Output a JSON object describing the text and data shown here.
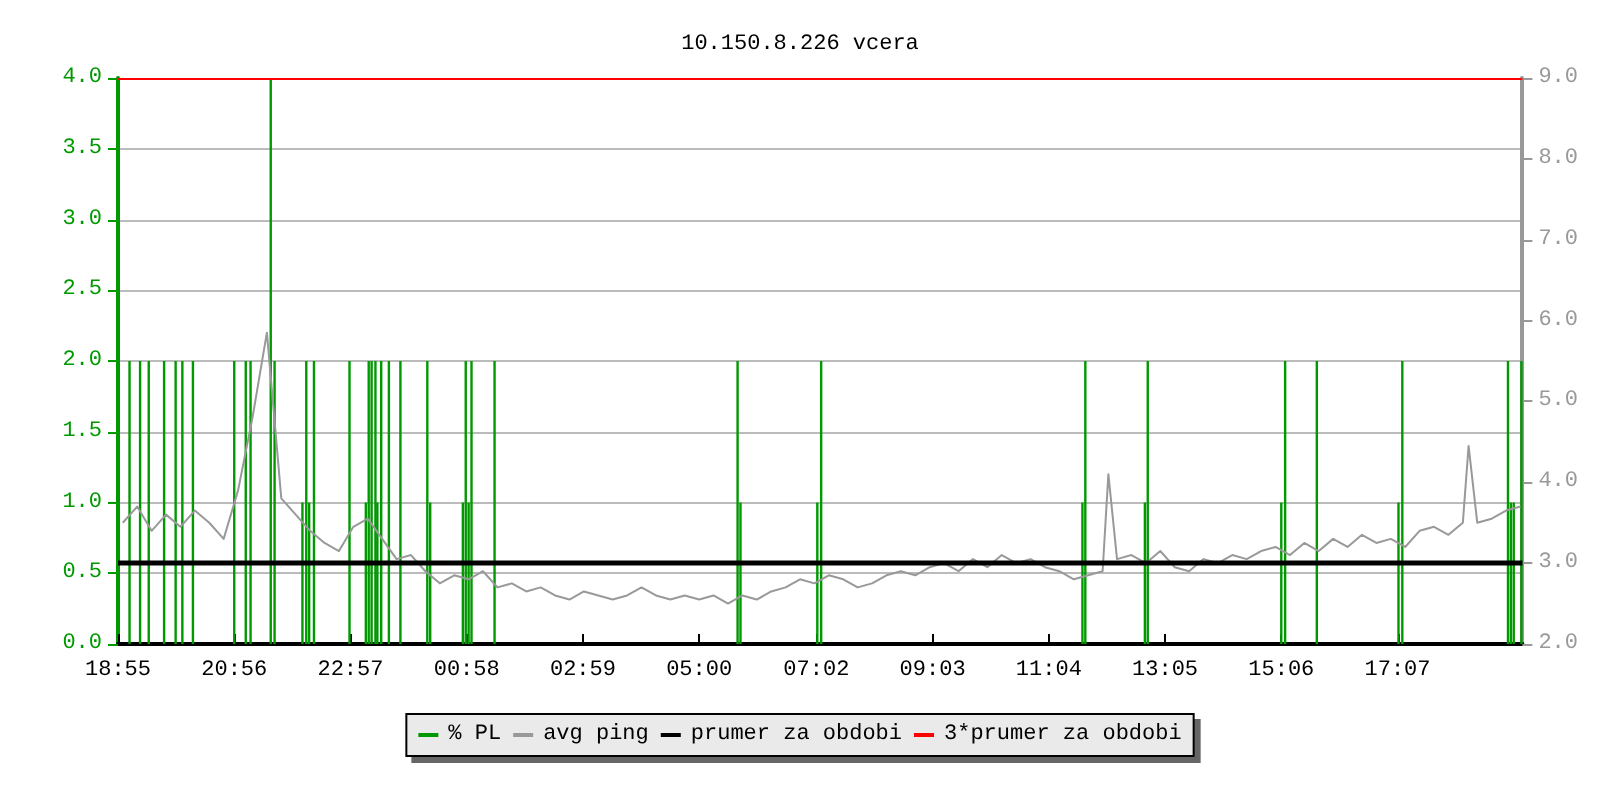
{
  "chart_data": {
    "type": "bar",
    "title": "10.150.8.226 vcera",
    "xlim": [
      "--01-01T18:55",
      "--01-02T19:17"
    ],
    "xticks": [
      {
        "value": "--01-01T18:55",
        "label": "18:55"
      },
      {
        "value": "--01-01T20:56",
        "label": "20:56"
      },
      {
        "value": "--01-01T22:57",
        "label": "22:57"
      },
      {
        "value": "--01-02T00:58",
        "label": "00:58"
      },
      {
        "value": "--01-02T02:59",
        "label": "02:59"
      },
      {
        "value": "--01-02T05:00",
        "label": "05:00"
      },
      {
        "value": "--01-02T07:02",
        "label": "07:02"
      },
      {
        "value": "--01-02T09:03",
        "label": "09:03"
      },
      {
        "value": "--01-02T11:04",
        "label": "11:04"
      },
      {
        "value": "--01-02T13:05",
        "label": "13:05"
      },
      {
        "value": "--01-02T15:06",
        "label": "15:06"
      },
      {
        "value": "--01-02T17:07",
        "label": "17:07"
      }
    ],
    "ylim": [
      0,
      4
    ],
    "yticks": [
      {
        "value": 0,
        "label": "0.0"
      },
      {
        "value": 0.5,
        "label": "0.5"
      },
      {
        "value": 1,
        "label": "1.0"
      },
      {
        "value": 1.5,
        "label": "1.5"
      },
      {
        "value": 2,
        "label": "2.0"
      },
      {
        "value": 2.5,
        "label": "2.5"
      },
      {
        "value": 3,
        "label": "3.0"
      },
      {
        "value": 3.5,
        "label": "3.5"
      },
      {
        "value": 4,
        "label": "4.0"
      }
    ],
    "y2lim": [
      2,
      9
    ],
    "y2ticks": [
      {
        "value": 2,
        "label": "2.0"
      },
      {
        "value": 3,
        "label": "3.0"
      },
      {
        "value": 4,
        "label": "4.0"
      },
      {
        "value": 5,
        "label": "5.0"
      },
      {
        "value": 6,
        "label": "6.0"
      },
      {
        "value": 7,
        "label": "7.0"
      },
      {
        "value": 8,
        "label": "8.0"
      },
      {
        "value": 9,
        "label": "9.0"
      }
    ],
    "grid": "y",
    "legend": "bottom",
    "series": [
      {
        "name": "% PL",
        "color": "#009900",
        "x": [
          "--01-01T19:07",
          "--01-01T19:18",
          "--01-01T19:27",
          "--01-01T19:43",
          "--01-01T19:55",
          "--01-01T20:02",
          "--01-01T20:13",
          "--01-01T20:56",
          "--01-01T21:08",
          "--01-01T21:13",
          "--01-01T21:34",
          "--01-01T21:38",
          "--01-01T22:07",
          "--01-01T22:11",
          "--01-01T22:14",
          "--01-01T22:19",
          "--01-01T22:56",
          "--01-01T23:13",
          "--01-01T23:16",
          "--01-01T23:19",
          "--01-01T23:23",
          "--01-01T23:25",
          "--01-01T23:29",
          "--01-01T23:37",
          "--01-01T23:49",
          "--01-02T00:17",
          "--01-02T00:20",
          "--01-02T00:54",
          "--01-02T00:57",
          "--01-02T01:00",
          "--01-02T01:03",
          "--01-02T01:27",
          "--01-02T05:40",
          "--01-02T05:43",
          "--01-02T07:03",
          "--01-02T07:07",
          "--01-02T11:39",
          "--01-02T11:42",
          "--01-02T12:44",
          "--01-02T12:47",
          "--01-02T15:06",
          "--01-02T15:10",
          "--01-02T15:43",
          "--01-02T17:08",
          "--01-02T17:12",
          "--01-02T19:02",
          "--01-02T19:05",
          "--01-02T19:08",
          "--01-02T19:16"
        ],
        "values": [
          2,
          2,
          2,
          2,
          2,
          2,
          2,
          2,
          2,
          2,
          4,
          2,
          1,
          2,
          1,
          2,
          2,
          1,
          2,
          2,
          2,
          1,
          2,
          2,
          2,
          2,
          1,
          1,
          2,
          1,
          2,
          2,
          2,
          1,
          1,
          2,
          1,
          2,
          1,
          2,
          1,
          2,
          2,
          1,
          2,
          2,
          1,
          1,
          2
        ]
      },
      {
        "name": "avg ping",
        "type": "line",
        "axis": "y2",
        "color": "#999999",
        "x": [
          "--01-01T19:00",
          "--01-01T19:15",
          "--01-01T19:30",
          "--01-01T19:45",
          "--01-01T20:00",
          "--01-01T20:15",
          "--01-01T20:30",
          "--01-01T20:45",
          "--01-01T21:00",
          "--01-01T21:15",
          "--01-01T21:30",
          "--01-01T21:45",
          "--01-01T22:00",
          "--01-01T22:15",
          "--01-01T22:30",
          "--01-01T22:45",
          "--01-01T23:00",
          "--01-01T23:15",
          "--01-01T23:30",
          "--01-01T23:45",
          "--01-02T00:00",
          "--01-02T00:15",
          "--01-02T00:30",
          "--01-02T00:45",
          "--01-02T01:00",
          "--01-02T01:15",
          "--01-02T01:30",
          "--01-02T01:45",
          "--01-02T02:00",
          "--01-02T02:15",
          "--01-02T02:30",
          "--01-02T02:45",
          "--01-02T03:00",
          "--01-02T03:15",
          "--01-02T03:30",
          "--01-02T03:45",
          "--01-02T04:00",
          "--01-02T04:15",
          "--01-02T04:30",
          "--01-02T04:45",
          "--01-02T05:00",
          "--01-02T05:15",
          "--01-02T05:30",
          "--01-02T05:45",
          "--01-02T06:00",
          "--01-02T06:15",
          "--01-02T06:30",
          "--01-02T06:45",
          "--01-02T07:00",
          "--01-02T07:15",
          "--01-02T07:30",
          "--01-02T07:45",
          "--01-02T08:00",
          "--01-02T08:15",
          "--01-02T08:30",
          "--01-02T08:45",
          "--01-02T09:00",
          "--01-02T09:15",
          "--01-02T09:30",
          "--01-02T09:45",
          "--01-02T10:00",
          "--01-02T10:15",
          "--01-02T10:30",
          "--01-02T10:45",
          "--01-02T11:00",
          "--01-02T11:15",
          "--01-02T11:30",
          "--01-02T11:45",
          "--01-02T12:00",
          "--01-02T12:06",
          "--01-02T12:15",
          "--01-02T12:30",
          "--01-02T12:45",
          "--01-02T13:00",
          "--01-02T13:15",
          "--01-02T13:30",
          "--01-02T13:45",
          "--01-02T14:00",
          "--01-02T14:15",
          "--01-02T14:30",
          "--01-02T14:45",
          "--01-02T15:00",
          "--01-02T15:15",
          "--01-02T15:30",
          "--01-02T15:45",
          "--01-02T16:00",
          "--01-02T16:15",
          "--01-02T16:30",
          "--01-02T16:45",
          "--01-02T17:00",
          "--01-02T17:15",
          "--01-02T17:30",
          "--01-02T17:45",
          "--01-02T18:00",
          "--01-02T18:15",
          "--01-02T18:21",
          "--01-02T18:30",
          "--01-02T18:45",
          "--01-02T19:00",
          "--01-02T19:15"
        ],
        "values": [
          3.5,
          3.7,
          3.4,
          3.6,
          3.45,
          3.65,
          3.5,
          3.3,
          3.9,
          4.8,
          5.85,
          3.8,
          3.6,
          3.4,
          3.25,
          3.15,
          3.45,
          3.55,
          3.3,
          3.05,
          3.1,
          2.9,
          2.75,
          2.85,
          2.8,
          2.9,
          2.7,
          2.75,
          2.65,
          2.7,
          2.6,
          2.55,
          2.65,
          2.6,
          2.55,
          2.6,
          2.7,
          2.6,
          2.55,
          2.6,
          2.55,
          2.6,
          2.5,
          2.6,
          2.55,
          2.65,
          2.7,
          2.8,
          2.75,
          2.85,
          2.8,
          2.7,
          2.75,
          2.85,
          2.9,
          2.85,
          2.95,
          3.0,
          2.9,
          3.05,
          2.95,
          3.1,
          3.0,
          3.05,
          2.95,
          2.9,
          2.8,
          2.85,
          2.9,
          4.1,
          3.05,
          3.1,
          3.0,
          3.15,
          2.95,
          2.9,
          3.05,
          3.0,
          3.1,
          3.05,
          3.15,
          3.2,
          3.1,
          3.25,
          3.15,
          3.3,
          3.2,
          3.35,
          3.25,
          3.3,
          3.2,
          3.4,
          3.45,
          3.35,
          3.5,
          4.45,
          3.5,
          3.55,
          3.65,
          3.7
        ]
      }
    ],
    "ref_lines": [
      {
        "axis": "y2",
        "value": 3,
        "label": "prumer za obdobi",
        "color": "#000000"
      },
      {
        "axis": "y2",
        "value": 9,
        "label": "3*prumer za obdobi",
        "color": "#ff0000"
      }
    ]
  }
}
